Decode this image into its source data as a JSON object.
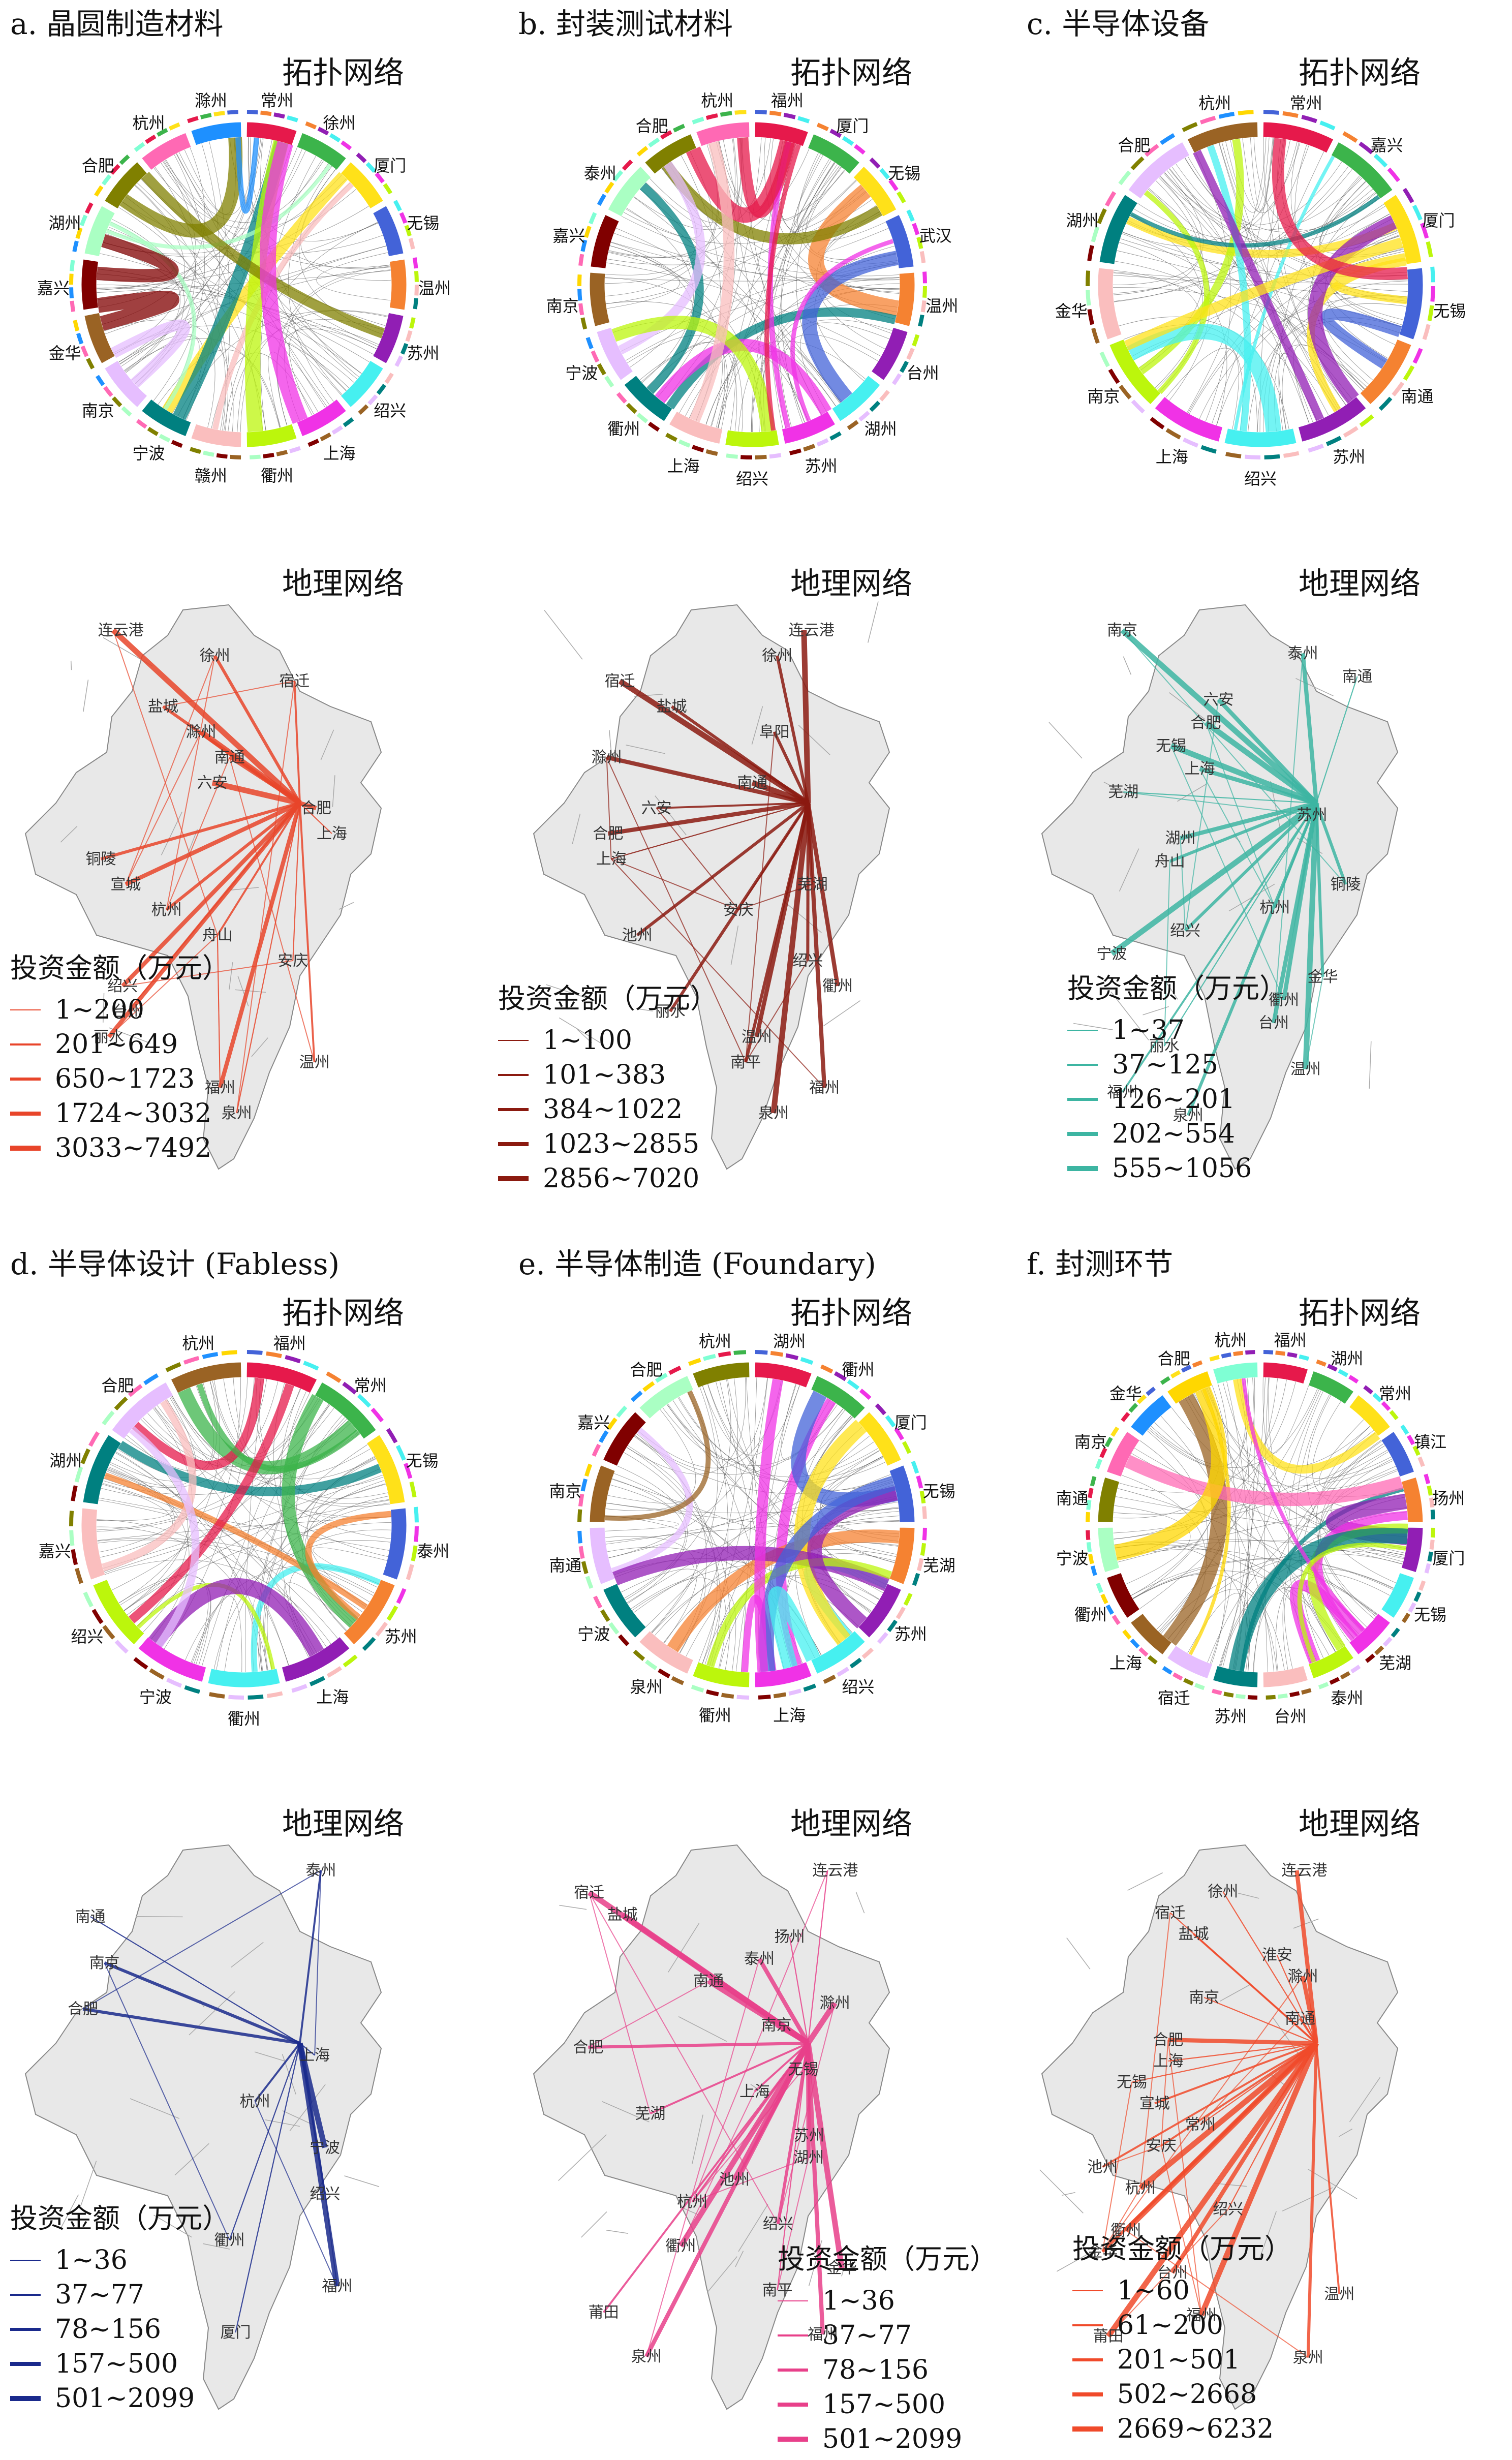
{
  "panels": [
    {
      "id": "a",
      "title": "a. 晶圆制造材料",
      "topo_label": "拓扑网络",
      "geo_label": "地理网络",
      "color": "#e8452a",
      "cities": [
        "常州",
        "徐州",
        "厦门",
        "无锡",
        "温州",
        "苏州",
        "绍兴",
        "上海",
        "衢州",
        "赣州",
        "宁波",
        "南京",
        "金华",
        "嘉兴",
        "湖州",
        "合肥",
        "杭州",
        "滁州"
      ],
      "legend": {
        "title": "投资金额（万元）",
        "items": [
          "1~200",
          "201~649",
          "650~1723",
          "1724~3032",
          "3033~7492"
        ]
      },
      "geo_cities": [
        "连云港",
        "徐州",
        "宿迁",
        "盐城",
        "滁州",
        "南通",
        "六安",
        "合肥",
        "上海",
        "铜陵",
        "宣城",
        "杭州",
        "舟山",
        "安庆",
        "绍兴",
        "台州",
        "丽水",
        "温州",
        "福州",
        "泉州"
      ]
    },
    {
      "id": "b",
      "title": "b. 封装测试材料",
      "topo_label": "拓扑网络",
      "geo_label": "地理网络",
      "color": "#8b1a10",
      "cities": [
        "福州",
        "厦门",
        "无锡",
        "武汉",
        "温州",
        "台州",
        "湖州",
        "苏州",
        "绍兴",
        "上海",
        "衢州",
        "宁波",
        "南京",
        "嘉兴",
        "泰州",
        "合肥",
        "杭州"
      ],
      "legend": {
        "title": "投资金额（万元）",
        "items": [
          "1~100",
          "101~383",
          "384~1022",
          "1023~2855",
          "2856~7020"
        ]
      },
      "geo_cities": [
        "连云港",
        "徐州",
        "宿迁",
        "盐城",
        "阜阳",
        "滁州",
        "南通",
        "六安",
        "合肥",
        "上海",
        "芜湖",
        "安庆",
        "池州",
        "绍兴",
        "衢州",
        "丽水",
        "温州",
        "南平",
        "福州",
        "泉州"
      ]
    },
    {
      "id": "c",
      "title": "c. 半导体设备",
      "topo_label": "拓扑网络",
      "geo_label": "地理网络",
      "color": "#3db5a2",
      "cities": [
        "常州",
        "嘉兴",
        "厦门",
        "无锡",
        "南通",
        "苏州",
        "绍兴",
        "上海",
        "南京",
        "金华",
        "湖州",
        "合肥",
        "杭州"
      ],
      "legend": {
        "title": "投资金额（万元）",
        "items": [
          "1~37",
          "37~125",
          "126~201",
          "202~554",
          "555~1056"
        ]
      },
      "geo_cities": [
        "南京",
        "泰州",
        "南通",
        "六安",
        "合肥",
        "无锡",
        "上海",
        "芜湖",
        "苏州",
        "湖州",
        "舟山",
        "铜陵",
        "杭州",
        "绍兴",
        "宁波",
        "金华",
        "衢州",
        "台州",
        "丽水",
        "温州",
        "福州",
        "泉州"
      ]
    },
    {
      "id": "d",
      "title": "d. 半导体设计 (Fabless)",
      "topo_label": "拓扑网络",
      "geo_label": "地理网络",
      "color": "#1a2a8c",
      "cities": [
        "福州",
        "常州",
        "无锡",
        "泰州",
        "苏州",
        "上海",
        "衢州",
        "宁波",
        "绍兴",
        "嘉兴",
        "湖州",
        "合肥",
        "杭州"
      ],
      "legend": {
        "title": "投资金额（万元）",
        "items": [
          "1~36",
          "37~77",
          "78~156",
          "157~500",
          "501~2099"
        ]
      },
      "geo_cities": [
        "泰州",
        "南通",
        "南京",
        "合肥",
        "上海",
        "杭州",
        "宁波",
        "绍兴",
        "衢州",
        "福州",
        "厦门"
      ]
    },
    {
      "id": "e",
      "title": "e. 半导体制造 (Foundary)",
      "topo_label": "拓扑网络",
      "geo_label": "地理网络",
      "color": "#e8408a",
      "cities": [
        "湖州",
        "衢州",
        "厦门",
        "无锡",
        "芜湖",
        "苏州",
        "绍兴",
        "上海",
        "衢州",
        "泉州",
        "宁波",
        "南通",
        "南京",
        "嘉兴",
        "合肥",
        "杭州"
      ],
      "legend": {
        "title": "投资金额（万元）",
        "items": [
          "1~36",
          "37~77",
          "78~156",
          "157~500",
          "501~2099"
        ]
      },
      "geo_cities": [
        "连云港",
        "宿迁",
        "盐城",
        "扬州",
        "泰州",
        "南通",
        "滁州",
        "南京",
        "合肥",
        "无锡",
        "上海",
        "芜湖",
        "苏州",
        "湖州",
        "池州",
        "杭州",
        "绍兴",
        "衢州",
        "金华",
        "南平",
        "莆田",
        "福州",
        "泉州"
      ]
    },
    {
      "id": "f",
      "title": "f. 封测环节",
      "topo_label": "拓扑网络",
      "geo_label": "地理网络",
      "color": "#f04a2a",
      "cities": [
        "福州",
        "湖州",
        "常州",
        "镇江",
        "扬州",
        "厦门",
        "无锡",
        "芜湖",
        "泰州",
        "台州",
        "苏州",
        "宿迁",
        "上海",
        "衢州",
        "宁波",
        "南通",
        "南京",
        "金华",
        "合肥",
        "杭州"
      ],
      "legend": {
        "title": "投资金额（万元）",
        "items": [
          "1~60",
          "61~200",
          "201~501",
          "502~2668",
          "2669~6232"
        ]
      },
      "geo_cities": [
        "连云港",
        "徐州",
        "宿迁",
        "盐城",
        "淮安",
        "滁州",
        "南京",
        "南通",
        "合肥",
        "上海",
        "无锡",
        "宣城",
        "常州",
        "安庆",
        "池州",
        "杭州",
        "绍兴",
        "衢州",
        "金华",
        "台州",
        "温州",
        "福州",
        "莆田",
        "泉州"
      ]
    }
  ]
}
